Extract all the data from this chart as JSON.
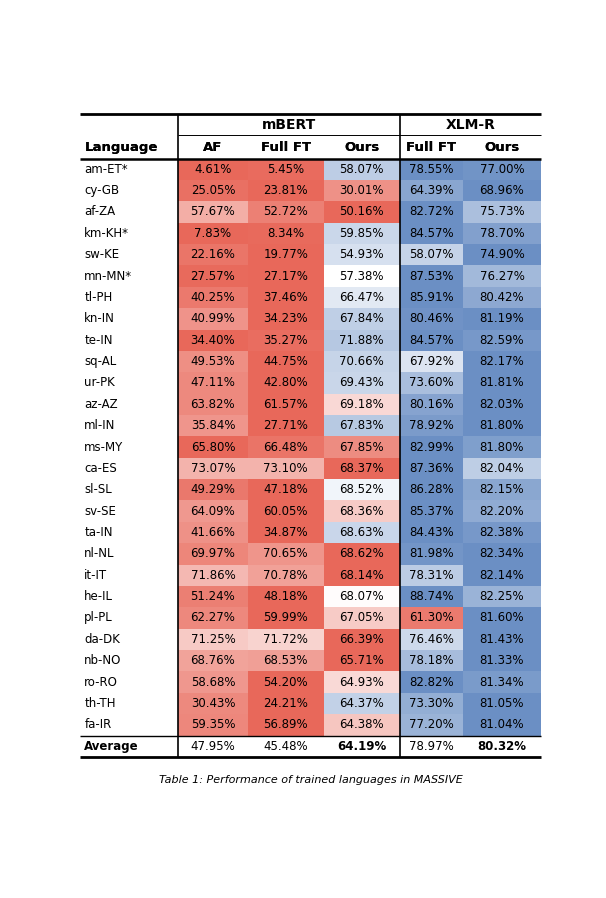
{
  "rows": [
    [
      "am-ET*",
      4.61,
      5.45,
      58.07,
      78.55,
      77.0
    ],
    [
      "cy-GB",
      25.05,
      23.81,
      30.01,
      64.39,
      68.96
    ],
    [
      "af-ZA",
      57.67,
      52.72,
      50.16,
      82.72,
      75.73
    ],
    [
      "km-KH*",
      7.83,
      8.34,
      59.85,
      84.57,
      78.7
    ],
    [
      "sw-KE",
      22.16,
      19.77,
      54.93,
      58.07,
      74.9
    ],
    [
      "mn-MN*",
      27.57,
      27.17,
      57.38,
      87.53,
      76.27
    ],
    [
      "tl-PH",
      40.25,
      37.46,
      66.47,
      85.91,
      80.42
    ],
    [
      "kn-IN",
      40.99,
      34.23,
      67.84,
      80.46,
      81.19
    ],
    [
      "te-IN",
      34.4,
      35.27,
      71.88,
      84.57,
      82.59
    ],
    [
      "sq-AL",
      49.53,
      44.75,
      70.66,
      67.92,
      82.17
    ],
    [
      "ur-PK",
      47.11,
      42.8,
      69.43,
      73.6,
      81.81
    ],
    [
      "az-AZ",
      63.82,
      61.57,
      69.18,
      80.16,
      82.03
    ],
    [
      "ml-IN",
      35.84,
      27.71,
      67.83,
      78.92,
      81.8
    ],
    [
      "ms-MY",
      65.8,
      66.48,
      67.85,
      82.99,
      81.8
    ],
    [
      "ca-ES",
      73.07,
      73.1,
      68.37,
      87.36,
      82.04
    ],
    [
      "sl-SL",
      49.29,
      47.18,
      68.52,
      86.28,
      82.15
    ],
    [
      "sv-SE",
      64.09,
      60.05,
      68.36,
      85.37,
      82.2
    ],
    [
      "ta-IN",
      41.66,
      34.87,
      68.63,
      84.43,
      82.38
    ],
    [
      "nl-NL",
      69.97,
      70.65,
      68.62,
      81.98,
      82.34
    ],
    [
      "it-IT",
      71.86,
      70.78,
      68.14,
      78.31,
      82.14
    ],
    [
      "he-IL",
      51.24,
      48.18,
      68.07,
      88.74,
      82.25
    ],
    [
      "pl-PL",
      62.27,
      59.99,
      67.05,
      61.3,
      81.6
    ],
    [
      "da-DK",
      71.25,
      71.72,
      66.39,
      76.46,
      81.43
    ],
    [
      "nb-NO",
      68.76,
      68.53,
      65.71,
      78.18,
      81.33
    ],
    [
      "ro-RO",
      58.68,
      54.2,
      64.93,
      82.82,
      81.34
    ],
    [
      "th-TH",
      30.43,
      24.21,
      64.37,
      73.3,
      81.05
    ],
    [
      "fa-IR",
      59.35,
      56.89,
      64.38,
      77.2,
      81.04
    ]
  ],
  "average": [
    "Average",
    47.95,
    45.48,
    64.19,
    78.97,
    80.32
  ],
  "red": [
    232,
    104,
    90
  ],
  "white": [
    255,
    255,
    255
  ],
  "blue": [
    107,
    143,
    196
  ],
  "light_blue_bg": [
    200,
    220,
    240
  ],
  "header_bg": [
    255,
    255,
    255
  ]
}
